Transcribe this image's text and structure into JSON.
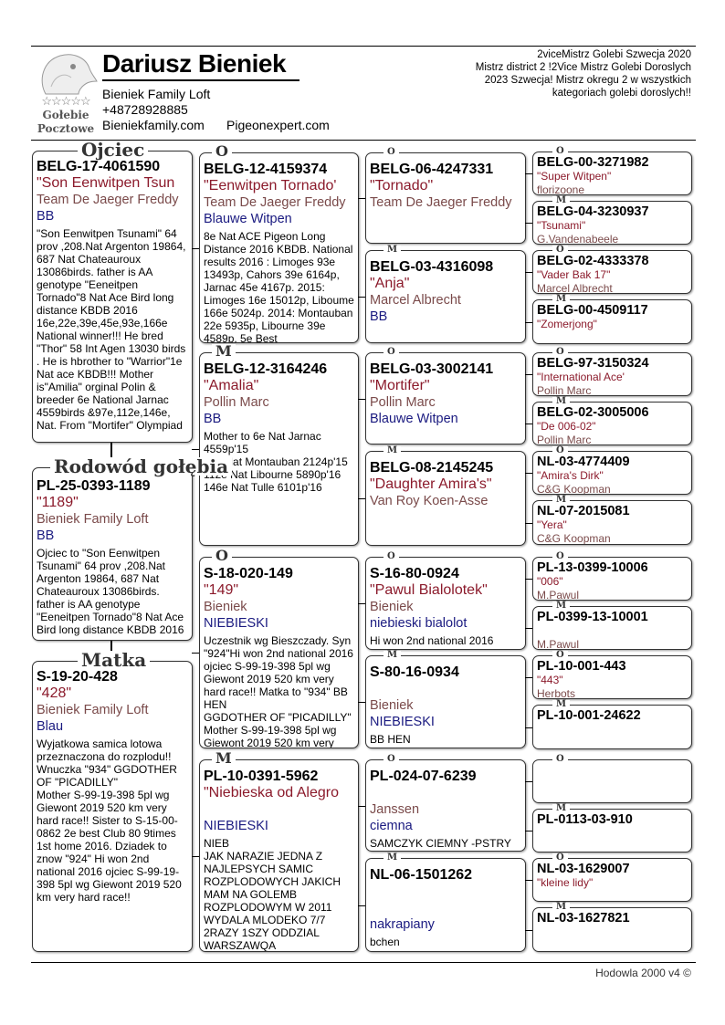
{
  "header": {
    "owner_name": "Dariusz Bieniek",
    "loft": "Bieniek Family Loft",
    "phone": "+48728928885",
    "website1": "Bieniekfamily.com",
    "website2": "Pigeonexpert.com",
    "logo_text": "Gołebie Pocztowe",
    "titles": [
      "2viceMistrz Golebi Szwecja 2020",
      "Mistrz district 2 !2Vice Mistrz Golebi Doroslych",
      "2023 Szwecja! Mistrz okregu 2 w wszystkich",
      "kategoriach golebi doroslych!!"
    ]
  },
  "colors": {
    "ring": "#000000",
    "name": "#8b1a2b",
    "breeder": "#7a4a4a",
    "color": "#1a1a80"
  },
  "gen1": [
    {
      "label": "Ojciec",
      "ring": "BELG-17-4061590",
      "name": "\"Son Eenwitpen Tsun",
      "breeder": "Team De Jaeger Freddy",
      "color": "BB",
      "notes": "\"Son Eenwitpen Tsunami\" 64 prov ,208.Nat Argenton 19864, 687 Nat  Chateauroux 13086birds. father is AA genotype \"Eeneitpen Tornado\"8 Nat Ace Bird long distance KBDB 2016 16e,22e,39e,45e,93e,166e National winner!!! He bred \"Thor\" 58 Int Agen 13030 birds . He is hbrother to \"Warrior\"1e Nat ace KBDB!!! Mother is\"Amilia\" orginal Polin & breeder 6e National Jarnac 4559birds &97e,112e,146e, Nat. From \"Mortifer\" Olympiad"
    },
    {
      "label": "Rodowód gołębia",
      "ring": "PL-25-0393-1189",
      "name": "\"1189\"",
      "breeder": "Bieniek Family Loft",
      "color": "BB",
      "notes": "Ojciec to \"Son Eenwitpen Tsunami\" 64 prov ,208.Nat Argenton 19864, 687 Nat Chateauroux 13086birds. father is AA genotype \"Eeneitpen Tornado\"8 Nat Ace Bird long distance KBDB 2016"
    },
    {
      "label": "Matka",
      "ring": "S-19-20-428",
      "name": "\"428\"",
      "breeder": "Bieniek Family Loft",
      "color": "Blau",
      "notes": "Wyjatkowa samica lotowa przeznaczona do rozplodu!! Wnuczka \"934\" GGDOTHER OF \"PICADILLY\"\nMother  S-99-19-398  5pl wg Giewont 2019 520 km very hard race!! Sister to S-15-00-0862  2e best Club 80 9times 1st home 2016. Dziadek to znow \"924\" Hi won 2nd national 2016 ojciec S-99-19-398  5pl wg Giewont 2019 520 km very hard race!!"
    }
  ],
  "gen2": [
    {
      "label": "O",
      "ring": "BELG-12-4159374",
      "name": "\"Eenwitpen Tornado'",
      "breeder": "Team De Jaeger Freddy",
      "color": "Blauwe Witpen",
      "notes": "8e Nat ACE Pigeon Long Distance 2016 KBDB. National results 2016 : Limoges 93e 13493p, Cahors 39e 6164p, Jarnac 45e 4167p. 2015: Limoges 16e 15012p, Liboume 166e 5024p. 2014: Montauban 22e 5935p, Libourne 39e 4589p. 5e Best"
    },
    {
      "label": "M",
      "ring": "BELG-12-3164246",
      "name": "\"Amalia\"",
      "breeder": "Pollin Marc",
      "color": "BB",
      "notes": "Mother to 6e Nat Jarnac\n4559p'15\n97e Nat Montauban 2124p'15\n112e Nat Libourne 5890p'16\n146e Nat Tulle 6101p'16"
    },
    {
      "label": "O",
      "ring": "S-18-020-149",
      "name": "\"149\"",
      "breeder": "Bieniek",
      "color": "NIEBIESKI",
      "notes": "Uczestnik wg Bieszczady. Syn \"924\"Hi won 2nd national 2016 ojciec S-99-19-398  5pl wg Giewont 2019 520 km very hard race!! Matka to \"934\" BB HEN\nGGDOTHER OF \"PICADILLY\"\nMother  S-99-19-398  5pl wg Giewont 2019 520 km very"
    },
    {
      "label": "M",
      "ring": "PL-10-0391-5962",
      "name": "\"Niebieska od Alegro",
      "breeder": "",
      "color": "NIEBIESKI",
      "notes": "NIEB\nJAK NARAZIE JEDNA Z NAJLEPSYCH SAMIC ROZPLODOWYCH JAKICH MAM NA GOLEMB ROZPLODOWYM W 2011 WYDALA MLODEKO 7/7 2RAZY 1SZY ODDZIAL WARSZAWQA"
    }
  ],
  "gen3": [
    {
      "label": "O",
      "ring": "BELG-06-4247331",
      "name": "\"Tornado\"",
      "breeder": "Team De Jaeger Freddy",
      "color": "",
      "notes": ""
    },
    {
      "label": "M",
      "ring": "BELG-03-4316098",
      "name": "\"Anja\"",
      "breeder": "Marcel Albrecht",
      "color": "BB",
      "notes": ""
    },
    {
      "label": "O",
      "ring": "BELG-03-3002141",
      "name": "\"Mortifer\"",
      "breeder": "Pollin Marc",
      "color": "Blauwe Witpen",
      "notes": ""
    },
    {
      "label": "M",
      "ring": "BELG-08-2145245",
      "name": "\"Daughter Amira's\"",
      "breeder": "Van Roy Koen-Asse",
      "color": "",
      "notes": ""
    },
    {
      "label": "O",
      "ring": "S-16-80-0924",
      "name": "\"Pawul Bialolotek\"",
      "breeder": "Bieniek",
      "color": "niebieski bialolot",
      "notes": "Hi won 2nd national 2016"
    },
    {
      "label": "M",
      "ring": "S-80-16-0934",
      "name": "",
      "breeder": "Bieniek",
      "color": "NIEBIESKI",
      "notes": "BB HEN"
    },
    {
      "label": "O",
      "ring": "PL-024-07-6239",
      "name": "",
      "breeder": "Janssen",
      "color": "ciemna",
      "notes": "SAMCZYK CIEMNY -PSTRY"
    },
    {
      "label": "M",
      "ring": "NL-06-1501262",
      "name": "",
      "breeder": "",
      "color": "nakrapiany",
      "notes": "bchen"
    }
  ],
  "gen4": [
    {
      "label": "O",
      "ring": "BELG-00-3271982",
      "name": "\"Super Witpen\"",
      "breeder": "florizoone"
    },
    {
      "label": "M",
      "ring": "BELG-04-3230937",
      "name": "\"Tsunami\"",
      "breeder": "G.Vandenabeele"
    },
    {
      "label": "O",
      "ring": "BELG-02-4333378",
      "name": "\"Vader Bak 17\"",
      "breeder": "Marcel Albrecht"
    },
    {
      "label": "M",
      "ring": "BELG-00-4509117",
      "name": "\"Zomerjong\"",
      "breeder": ""
    },
    {
      "label": "O",
      "ring": "BELG-97-3150324",
      "name": "\"International Ace'",
      "breeder": "Pollin Marc"
    },
    {
      "label": "M",
      "ring": "BELG-02-3005006",
      "name": "\"De 006-02\"",
      "breeder": "Pollin Marc"
    },
    {
      "label": "O",
      "ring": "NL-03-4774409",
      "name": "\"Amira's Dirk\"",
      "breeder": "C&G Koopman"
    },
    {
      "label": "M",
      "ring": "NL-07-2015081",
      "name": "\"Yera\"",
      "breeder": "C&G Koopman"
    },
    {
      "label": "O",
      "ring": "PL-13-0399-10006",
      "name": "\"006\"",
      "breeder": "M.Pawul"
    },
    {
      "label": "M",
      "ring": "PL-0399-13-10001",
      "name": "",
      "breeder": "M.Pawul"
    },
    {
      "label": "O",
      "ring": "PL-10-001-443",
      "name": "\"443\"",
      "breeder": "Herbots"
    },
    {
      "label": "M",
      "ring": "PL-10-001-24622",
      "name": "",
      "breeder": ""
    },
    {
      "label": "O",
      "ring": "",
      "name": "",
      "breeder": ""
    },
    {
      "label": "M",
      "ring": "PL-0113-03-910",
      "name": "",
      "breeder": ""
    },
    {
      "label": "O",
      "ring": "NL-03-1629007",
      "name": "\"kleine lidy\"",
      "breeder": ""
    },
    {
      "label": "M",
      "ring": "NL-03-1627821",
      "name": "",
      "breeder": ""
    }
  ],
  "footer": "Hodowla 2000 v4 ©"
}
